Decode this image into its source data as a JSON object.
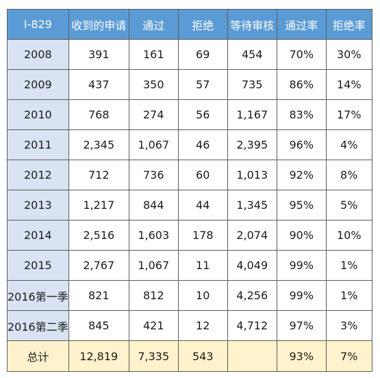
{
  "table": {
    "headers": [
      "I-829",
      "收到的申请",
      "通过",
      "拒绝",
      "等待审核",
      "通过率",
      "拒绝率"
    ],
    "rows": [
      [
        "2008",
        "391",
        "161",
        "69",
        "454",
        "70%",
        "30%"
      ],
      [
        "2009",
        "437",
        "350",
        "57",
        "735",
        "86%",
        "14%"
      ],
      [
        "2010",
        "768",
        "274",
        "56",
        "1,167",
        "83%",
        "17%"
      ],
      [
        "2011",
        "2,345",
        "1,067",
        "46",
        "2,395",
        "96%",
        "4%"
      ],
      [
        "2012",
        "712",
        "736",
        "60",
        "1,013",
        "92%",
        "8%"
      ],
      [
        "2013",
        "1,217",
        "844",
        "44",
        "1,345",
        "95%",
        "5%"
      ],
      [
        "2014",
        "2,516",
        "1,603",
        "178",
        "2,074",
        "90%",
        "10%"
      ],
      [
        "2015",
        "2,767",
        "1,067",
        "11",
        "4,049",
        "99%",
        "1%"
      ],
      [
        "2016第一季",
        "821",
        "812",
        "10",
        "4,256",
        "99%",
        "1%"
      ],
      [
        "2016第二季",
        "845",
        "421",
        "12",
        "4,712",
        "97%",
        "3%"
      ]
    ],
    "total": [
      "总计",
      "12,819",
      "7,335",
      "543",
      "",
      "93%",
      "7%"
    ]
  },
  "colors": {
    "header_bg": "#5b9bd5",
    "header_text": "#ffffff",
    "year_col_bg": "#dae3f3",
    "total_row_bg": "#fff2cc",
    "border": "#5a5a5a"
  }
}
